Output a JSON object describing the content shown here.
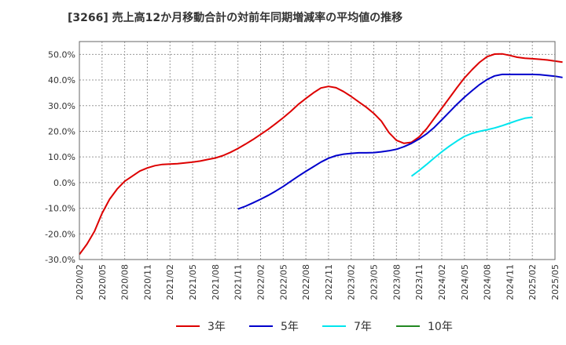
{
  "chart_data": {
    "type": "line",
    "title": "[3266]  売上高12か月移動合計の対前年同期増減率の平均値の推移",
    "xlabel": "",
    "ylabel": "",
    "ylim": [
      -30,
      55
    ],
    "yticks": [
      -30,
      -20,
      -10,
      0,
      10,
      20,
      30,
      40,
      50
    ],
    "ytick_labels": [
      "-30.0%",
      "-20.0%",
      "-10.0%",
      "0.0%",
      "10.0%",
      "20.0%",
      "30.0%",
      "40.0%",
      "50.0%"
    ],
    "xticks": [
      "2020/02",
      "2020/05",
      "2020/08",
      "2020/11",
      "2021/02",
      "2021/05",
      "2021/08",
      "2021/11",
      "2022/02",
      "2022/05",
      "2022/08",
      "2022/11",
      "2023/02",
      "2023/05",
      "2023/08",
      "2023/11",
      "2024/02",
      "2024/05",
      "2024/08",
      "2024/11",
      "2025/02",
      "2025/05"
    ],
    "grid": true,
    "legend_position": "bottom",
    "series": [
      {
        "name": "3年",
        "color": "#dd0000",
        "start": "2020/02",
        "values": [
          -28,
          -24,
          -19,
          -12,
          -6.5,
          -2.5,
          0.5,
          2.5,
          4.5,
          5.7,
          6.6,
          7.1,
          7.2,
          7.4,
          7.7,
          8.0,
          8.4,
          9.0,
          9.6,
          10.5,
          11.8,
          13.3,
          15.0,
          16.8,
          18.8,
          20.8,
          23.0,
          25.3,
          27.8,
          30.5,
          32.8,
          35.0,
          36.9,
          37.5,
          37.0,
          35.5,
          33.6,
          31.5,
          29.4,
          27.0,
          24.0,
          19.5,
          16.5,
          15.3,
          15.7,
          17.8,
          21.0,
          25.0,
          29.0,
          33.0,
          37.0,
          40.8,
          44.0,
          46.9,
          49.1,
          50.1,
          50.2,
          49.6,
          48.9,
          48.5,
          48.3,
          48.1,
          47.8,
          47.4,
          47.0
        ]
      },
      {
        "name": "5年",
        "color": "#0000cc",
        "start": "2021/11",
        "values": [
          -10.3,
          -9.2,
          -7.9,
          -6.5,
          -5.0,
          -3.3,
          -1.5,
          0.5,
          2.5,
          4.4,
          6.2,
          8.0,
          9.5,
          10.5,
          11.1,
          11.4,
          11.6,
          11.6,
          11.7,
          12.0,
          12.4,
          13.0,
          14.0,
          15.3,
          17.0,
          19.0,
          21.5,
          24.5,
          27.5,
          30.5,
          33.3,
          35.8,
          38.2,
          40.2,
          41.6,
          42.2,
          42.2,
          42.2,
          42.2,
          42.2,
          42.1,
          41.8,
          41.5,
          41.0
        ]
      },
      {
        "name": "7年",
        "color": "#00e5ee",
        "start": "2023/10",
        "values": [
          2.5,
          4.7,
          7.1,
          9.6,
          12.0,
          14.2,
          16.2,
          18.0,
          19.2,
          20.0,
          20.6,
          21.3,
          22.2,
          23.2,
          24.2,
          25.1,
          25.5
        ]
      },
      {
        "name": "10年",
        "color": "#228822",
        "start": "2025/02",
        "values": []
      }
    ]
  }
}
